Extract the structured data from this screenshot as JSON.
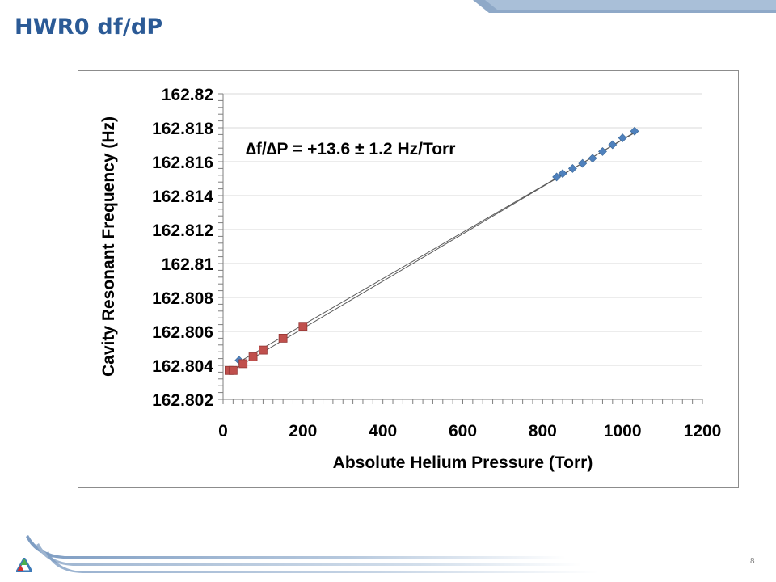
{
  "slide": {
    "title": "HWR0 df/dP",
    "page_number": "8"
  },
  "colors": {
    "title": "#2b5a96",
    "series_blue": "#4f81bd",
    "series_red": "#c0504d",
    "fit_line": "#595959",
    "grid": "#d9d9d9",
    "deco_blue": "#9bb7d4"
  },
  "chart_data": {
    "type": "scatter",
    "xlabel": "Absolute Helium Pressure (Torr)",
    "ylabel": "Cavity Resonant Frequency (Hz)",
    "annotation": "∆f/∆P = +13.6 ± 1.2 Hz/Torr",
    "xlim": [
      0,
      1200
    ],
    "ylim": [
      162.802,
      162.82
    ],
    "x_ticks": [
      "0",
      "200",
      "400",
      "600",
      "800",
      "1000",
      "1200"
    ],
    "y_ticks": [
      "162.802",
      "162.804",
      "162.806",
      "162.808",
      "162.81",
      "162.812",
      "162.814",
      "162.816",
      "162.818",
      "162.82"
    ],
    "grid": "horizontal",
    "series": [
      {
        "marker": "diamond",
        "color": "#4f81bd",
        "points": [
          [
            40,
            162.8043
          ],
          [
            835,
            162.8151
          ],
          [
            850,
            162.8153
          ],
          [
            875,
            162.8156
          ],
          [
            900,
            162.8159
          ],
          [
            925,
            162.8162
          ],
          [
            950,
            162.8166
          ],
          [
            975,
            162.817
          ],
          [
            1000,
            162.8174
          ],
          [
            1030,
            162.8178
          ]
        ]
      },
      {
        "marker": "square",
        "color": "#c0504d",
        "points": [
          [
            15,
            162.8037
          ],
          [
            25,
            162.8037
          ],
          [
            50,
            162.8041
          ],
          [
            75,
            162.8045
          ],
          [
            100,
            162.8049
          ],
          [
            150,
            162.8056
          ],
          [
            200,
            162.8063
          ]
        ]
      }
    ],
    "trendlines": [
      {
        "x": [
          15,
          1035
        ],
        "y": [
          162.8036,
          162.8178
        ]
      },
      {
        "x": [
          40,
          1030
        ],
        "y": [
          162.8042,
          162.8177
        ]
      }
    ]
  }
}
